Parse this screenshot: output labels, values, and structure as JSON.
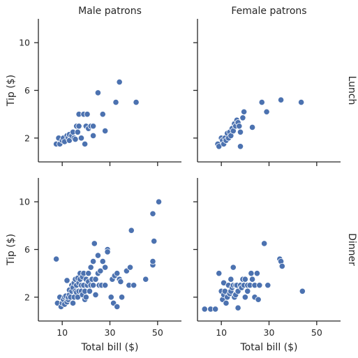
{
  "chart_data": {
    "type": "scatter",
    "col_titles": [
      "Male patrons",
      "Female patrons"
    ],
    "row_titles": [
      "Lunch",
      "Dinner"
    ],
    "xlabel": "Total bill ($)",
    "ylabel": "Tip ($)",
    "xlim": [
      0,
      60
    ],
    "ylim": [
      0,
      12
    ],
    "xticks": [
      10,
      30,
      50
    ],
    "yticks": [
      2,
      6,
      10
    ],
    "marker_color": "#4c72b0",
    "panels": [
      {
        "col": "Male patrons",
        "row": "Lunch",
        "points": [
          [
            7.5,
            1.5
          ],
          [
            8.5,
            2.0
          ],
          [
            9.0,
            1.5
          ],
          [
            10.0,
            1.8
          ],
          [
            10.5,
            2.0
          ],
          [
            11.0,
            1.7
          ],
          [
            12.0,
            2.2
          ],
          [
            12.5,
            2.0
          ],
          [
            13.0,
            1.8
          ],
          [
            13.0,
            2.3
          ],
          [
            14.0,
            2.2
          ],
          [
            14.5,
            2.5
          ],
          [
            15.0,
            2.0
          ],
          [
            15.5,
            1.9
          ],
          [
            16.0,
            3.0
          ],
          [
            16.5,
            2.5
          ],
          [
            17.0,
            3.0
          ],
          [
            17.0,
            4.0
          ],
          [
            18.0,
            2.0
          ],
          [
            19.0,
            4.0
          ],
          [
            19.5,
            1.5
          ],
          [
            20.0,
            3.0
          ],
          [
            20.5,
            4.0
          ],
          [
            21.0,
            2.8
          ],
          [
            22.0,
            3.0
          ],
          [
            23.0,
            3.0
          ],
          [
            23.0,
            2.2
          ],
          [
            25.0,
            5.8
          ],
          [
            27.0,
            4.0
          ],
          [
            28.0,
            2.6
          ],
          [
            32.5,
            5.0
          ],
          [
            34.0,
            6.7
          ],
          [
            41.0,
            5.0
          ]
        ]
      },
      {
        "col": "Female patrons",
        "row": "Lunch",
        "points": [
          [
            8.5,
            1.5
          ],
          [
            9.0,
            1.3
          ],
          [
            10.0,
            2.0
          ],
          [
            10.5,
            1.8
          ],
          [
            11.0,
            1.5
          ],
          [
            11.5,
            2.0
          ],
          [
            12.0,
            1.8
          ],
          [
            12.5,
            2.4
          ],
          [
            13.0,
            2.0
          ],
          [
            13.5,
            2.5
          ],
          [
            14.0,
            2.2
          ],
          [
            14.5,
            2.8
          ],
          [
            15.0,
            2.6
          ],
          [
            15.5,
            3.2
          ],
          [
            16.0,
            3.0
          ],
          [
            16.5,
            3.5
          ],
          [
            17.0,
            3.3
          ],
          [
            17.5,
            3.0
          ],
          [
            18.0,
            2.5
          ],
          [
            18.0,
            1.3
          ],
          [
            19.0,
            3.7
          ],
          [
            19.5,
            4.2
          ],
          [
            23.0,
            2.9
          ],
          [
            27.0,
            5.0
          ],
          [
            29.0,
            4.2
          ],
          [
            35.0,
            5.2
          ],
          [
            43.5,
            5.0
          ]
        ]
      },
      {
        "col": "Male patrons",
        "row": "Dinner",
        "points": [
          [
            7.5,
            5.2
          ],
          [
            8.0,
            1.5
          ],
          [
            9.0,
            2.0
          ],
          [
            9.5,
            1.2
          ],
          [
            10.0,
            1.5
          ],
          [
            10.5,
            1.8
          ],
          [
            11.0,
            1.4
          ],
          [
            11.0,
            2.0
          ],
          [
            11.5,
            2.1
          ],
          [
            12.0,
            1.6
          ],
          [
            12.0,
            3.4
          ],
          [
            12.5,
            1.8
          ],
          [
            12.5,
            2.0
          ],
          [
            13.0,
            2.2
          ],
          [
            13.0,
            2.6
          ],
          [
            13.5,
            2.0
          ],
          [
            14.0,
            3.0
          ],
          [
            14.0,
            2.5
          ],
          [
            14.5,
            1.5
          ],
          [
            14.5,
            2.8
          ],
          [
            15.0,
            2.0
          ],
          [
            15.0,
            3.2
          ],
          [
            15.5,
            2.5
          ],
          [
            15.5,
            3.5
          ],
          [
            16.0,
            2.4
          ],
          [
            16.0,
            3.0
          ],
          [
            16.5,
            2.0
          ],
          [
            16.5,
            3.6
          ],
          [
            17.0,
            2.5
          ],
          [
            17.0,
            3.2
          ],
          [
            17.5,
            3.5
          ],
          [
            17.5,
            4.0
          ],
          [
            18.0,
            2.5
          ],
          [
            18.0,
            3.0
          ],
          [
            18.5,
            3.7
          ],
          [
            18.5,
            2.2
          ],
          [
            19.0,
            4.0
          ],
          [
            19.0,
            3.0
          ],
          [
            19.5,
            2.5
          ],
          [
            19.5,
            1.8
          ],
          [
            20.0,
            3.5
          ],
          [
            20.0,
            2.0
          ],
          [
            20.5,
            3.0
          ],
          [
            21.0,
            4.0
          ],
          [
            21.0,
            3.3
          ],
          [
            21.5,
            2.5
          ],
          [
            22.0,
            3.0
          ],
          [
            22.0,
            4.5
          ],
          [
            22.5,
            3.5
          ],
          [
            23.0,
            3.0
          ],
          [
            23.0,
            5.0
          ],
          [
            23.5,
            6.5
          ],
          [
            24.0,
            3.5
          ],
          [
            24.0,
            2.2
          ],
          [
            25.0,
            4.0
          ],
          [
            25.0,
            5.5
          ],
          [
            25.5,
            3.0
          ],
          [
            26.0,
            4.2
          ],
          [
            26.5,
            3.0
          ],
          [
            27.0,
            5.0
          ],
          [
            28.0,
            4.5
          ],
          [
            28.0,
            3.0
          ],
          [
            29.0,
            6.0
          ],
          [
            29.0,
            5.8
          ],
          [
            30.5,
            2.0
          ],
          [
            31.0,
            3.5
          ],
          [
            31.5,
            1.5
          ],
          [
            32.0,
            3.8
          ],
          [
            33.0,
            4.0
          ],
          [
            33.0,
            1.2
          ],
          [
            34.0,
            3.5
          ],
          [
            34.5,
            3.3
          ],
          [
            35.0,
            2.0
          ],
          [
            37.0,
            4.2
          ],
          [
            38.0,
            3.0
          ],
          [
            38.5,
            4.5
          ],
          [
            39.0,
            7.6
          ],
          [
            40.0,
            3.0
          ],
          [
            45.0,
            3.5
          ],
          [
            48.0,
            4.7
          ],
          [
            48.0,
            5.0
          ],
          [
            48.0,
            9.0
          ],
          [
            48.5,
            6.7
          ],
          [
            50.5,
            10.0
          ]
        ]
      },
      {
        "col": "Female patrons",
        "row": "Dinner",
        "points": [
          [
            3.0,
            1.0
          ],
          [
            5.5,
            1.0
          ],
          [
            7.5,
            1.0
          ],
          [
            9.0,
            4.0
          ],
          [
            10.0,
            2.5
          ],
          [
            10.5,
            1.8
          ],
          [
            11.0,
            2.2
          ],
          [
            11.0,
            3.2
          ],
          [
            11.5,
            2.5
          ],
          [
            12.0,
            1.5
          ],
          [
            12.5,
            2.0
          ],
          [
            13.0,
            3.0
          ],
          [
            13.5,
            2.3
          ],
          [
            14.0,
            2.5
          ],
          [
            14.0,
            3.5
          ],
          [
            14.5,
            2.8
          ],
          [
            15.0,
            3.0
          ],
          [
            15.0,
            4.5
          ],
          [
            15.5,
            2.0
          ],
          [
            16.0,
            3.0
          ],
          [
            16.0,
            2.2
          ],
          [
            16.5,
            3.0
          ],
          [
            17.0,
            2.5
          ],
          [
            17.0,
            1.1
          ],
          [
            18.0,
            3.0
          ],
          [
            18.5,
            2.8
          ],
          [
            19.0,
            3.5
          ],
          [
            19.5,
            3.0
          ],
          [
            20.0,
            2.0
          ],
          [
            20.0,
            3.5
          ],
          [
            21.0,
            2.5
          ],
          [
            21.0,
            3.0
          ],
          [
            22.0,
            3.0
          ],
          [
            22.5,
            4.0
          ],
          [
            23.0,
            3.5
          ],
          [
            24.0,
            2.0
          ],
          [
            24.0,
            3.0
          ],
          [
            25.0,
            4.0
          ],
          [
            25.5,
            1.8
          ],
          [
            26.0,
            3.0
          ],
          [
            28.0,
            6.5
          ],
          [
            29.5,
            3.0
          ],
          [
            34.5,
            5.2
          ],
          [
            35.0,
            5.0
          ],
          [
            35.5,
            4.6
          ],
          [
            44.0,
            2.5
          ]
        ]
      }
    ]
  }
}
